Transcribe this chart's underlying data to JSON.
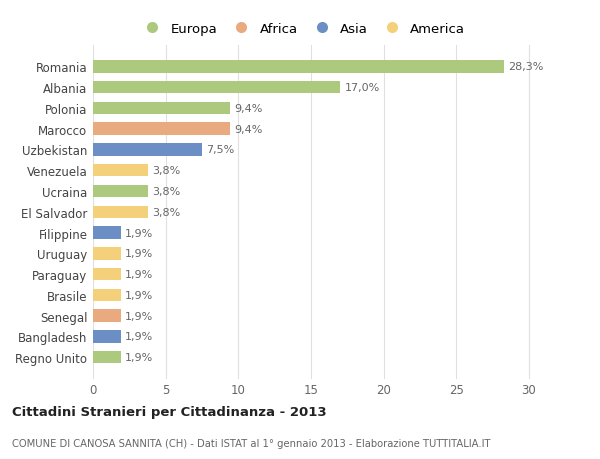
{
  "countries": [
    "Romania",
    "Albania",
    "Polonia",
    "Marocco",
    "Uzbekistan",
    "Venezuela",
    "Ucraina",
    "El Salvador",
    "Filippine",
    "Uruguay",
    "Paraguay",
    "Brasile",
    "Senegal",
    "Bangladesh",
    "Regno Unito"
  ],
  "values": [
    28.3,
    17.0,
    9.4,
    9.4,
    7.5,
    3.8,
    3.8,
    3.8,
    1.9,
    1.9,
    1.9,
    1.9,
    1.9,
    1.9,
    1.9
  ],
  "labels": [
    "28,3%",
    "17,0%",
    "9,4%",
    "9,4%",
    "7,5%",
    "3,8%",
    "3,8%",
    "3,8%",
    "1,9%",
    "1,9%",
    "1,9%",
    "1,9%",
    "1,9%",
    "1,9%",
    "1,9%"
  ],
  "colors": [
    "#adc97e",
    "#adc97e",
    "#adc97e",
    "#e8aa7e",
    "#6b8fc5",
    "#f5d07a",
    "#adc97e",
    "#f5d07a",
    "#6b8fc5",
    "#f5d07a",
    "#f5d07a",
    "#f5d07a",
    "#e8aa7e",
    "#6b8fc5",
    "#adc97e"
  ],
  "legend_labels": [
    "Europa",
    "Africa",
    "Asia",
    "America"
  ],
  "legend_colors": [
    "#adc97e",
    "#e8aa7e",
    "#6b8fc5",
    "#f5d07a"
  ],
  "title": "Cittadini Stranieri per Cittadinanza - 2013",
  "subtitle": "COMUNE DI CANOSA SANNITA (CH) - Dati ISTAT al 1° gennaio 2013 - Elaborazione TUTTITALIA.IT",
  "xlim": [
    0,
    32
  ],
  "xticks": [
    0,
    5,
    10,
    15,
    20,
    25,
    30
  ],
  "background_color": "#ffffff",
  "grid_color": "#e0e0e0"
}
